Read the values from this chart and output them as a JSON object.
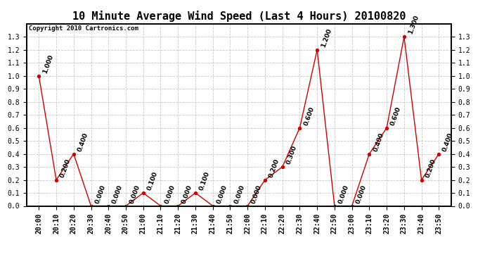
{
  "title": "10 Minute Average Wind Speed (Last 4 Hours) 20100820",
  "copyright_text": "Copyright 2010 Cartronics.com",
  "x_labels": [
    "20:00",
    "20:10",
    "20:20",
    "20:30",
    "20:40",
    "20:50",
    "21:00",
    "21:10",
    "21:20",
    "21:30",
    "21:40",
    "21:50",
    "22:00",
    "22:10",
    "22:20",
    "22:30",
    "22:40",
    "22:50",
    "23:00",
    "23:10",
    "23:20",
    "23:30",
    "23:40",
    "23:50"
  ],
  "y_values": [
    1.0,
    0.2,
    0.4,
    0.0,
    0.0,
    0.0,
    0.1,
    0.0,
    0.0,
    0.1,
    0.0,
    0.0,
    0.0,
    0.2,
    0.3,
    0.6,
    1.2,
    0.0,
    0.0,
    0.4,
    0.6,
    1.3,
    0.2,
    0.4
  ],
  "line_color": "#cc0000",
  "marker_color": "#cc0000",
  "bg_color": "#ffffff",
  "grid_color": "#c8c8c8",
  "ylim": [
    0.0,
    1.4
  ],
  "ytick_left": [
    0.0,
    0.1,
    0.2,
    0.3,
    0.4,
    0.5,
    0.6,
    0.7,
    0.8,
    0.9,
    1.0,
    1.1,
    1.2,
    1.3
  ],
  "ytick_right": [
    0.0,
    0.1,
    0.2,
    0.3,
    0.4,
    0.5,
    0.6,
    0.7,
    0.8,
    0.9,
    1.0,
    1.1,
    1.2,
    1.3
  ],
  "title_fontsize": 11,
  "label_fontsize": 7,
  "annotation_fontsize": 6.5,
  "copyright_fontsize": 6.5,
  "fig_width": 6.9,
  "fig_height": 3.75,
  "fig_dpi": 100
}
